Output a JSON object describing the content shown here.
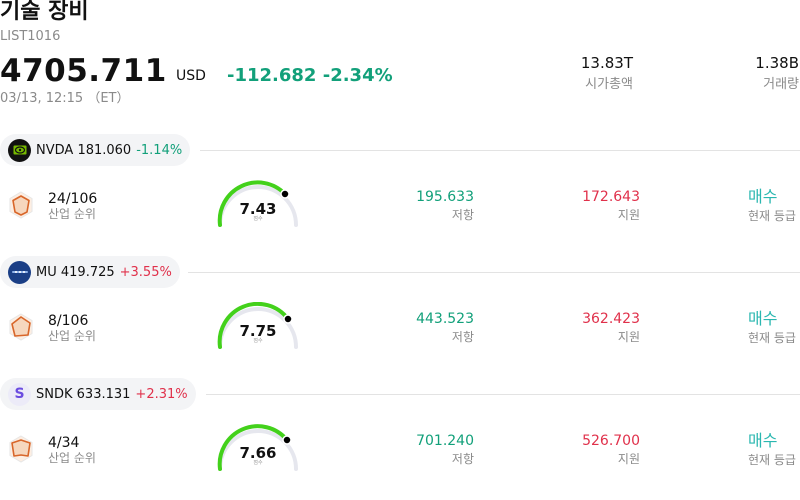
{
  "header": {
    "title": "기술 장비",
    "code": "LIST1016",
    "price": "4705.711",
    "currency": "USD",
    "change": "-112.682 -2.34%",
    "datetime": "03/13, 12:15 （ET）",
    "market_cap": {
      "value": "13.83T",
      "label": "시가총액"
    },
    "volume": {
      "value": "1.38B",
      "label": "거래량"
    }
  },
  "colors": {
    "up": "#e0314b",
    "down": "#12a07a",
    "gauge": "#43d11b",
    "rating": "#2ab7b0"
  },
  "stocks": [
    {
      "logo": "nvidia-logo-icon",
      "symbol": "NVDA",
      "price": "181.060",
      "change": "-1.14%",
      "direction": "down",
      "rank": "24/106",
      "rank_label": "산업 순위",
      "score": "7.43",
      "score_label": "점수",
      "resistance": "195.633",
      "resistance_label": "저항",
      "support": "172.643",
      "support_label": "지원",
      "rating": "매수",
      "rating_label": "현재 등급"
    },
    {
      "logo": "micron-logo-icon",
      "symbol": "MU",
      "price": "419.725",
      "change": "+3.55%",
      "direction": "up",
      "rank": "8/106",
      "rank_label": "산업 순위",
      "score": "7.75",
      "score_label": "점수",
      "resistance": "443.523",
      "resistance_label": "저항",
      "support": "362.423",
      "support_label": "지원",
      "rating": "매수",
      "rating_label": "현재 등급"
    },
    {
      "logo": "sandisk-logo-icon",
      "logo_letter": "S",
      "symbol": "SNDK",
      "price": "633.131",
      "change": "+2.31%",
      "direction": "up",
      "rank": "4/34",
      "rank_label": "산업 순위",
      "score": "7.66",
      "score_label": "점수",
      "resistance": "701.240",
      "resistance_label": "저항",
      "support": "526.700",
      "support_label": "지원",
      "rating": "매수",
      "rating_label": "현재 등급"
    }
  ]
}
